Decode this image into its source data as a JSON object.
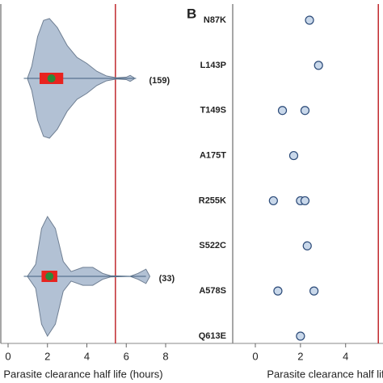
{
  "chart_data": [
    {
      "type": "violin",
      "x_label": "Parasite clearance half life (hours)",
      "xlim": [
        0,
        8
      ],
      "xticks": [
        0,
        2,
        4,
        6,
        8
      ],
      "refline": 5.45,
      "refline_color": "#c0282d",
      "fill": "#b2c1d4",
      "box_color": "#e8231f",
      "median_color": "#2a8a3a",
      "series": [
        {
          "annotation": "(159)",
          "min": 0.8,
          "q1": 1.6,
          "median": 2.2,
          "q3": 2.8,
          "max": 6.5,
          "density_x": [
            1.0,
            1.2,
            1.5,
            1.8,
            2.1,
            2.5,
            3.0,
            3.5,
            4.0,
            4.5,
            5.0,
            5.5,
            6.0,
            6.2,
            6.4
          ],
          "density": [
            0.02,
            0.2,
            0.7,
            0.97,
            1.0,
            0.85,
            0.55,
            0.35,
            0.25,
            0.12,
            0.04,
            0.01,
            0.02,
            0.05,
            0.01
          ]
        },
        {
          "annotation": "(33)",
          "min": 0.8,
          "q1": 1.7,
          "median": 2.1,
          "q3": 2.5,
          "max": 7.0,
          "density_x": [
            1.0,
            1.4,
            1.7,
            2.0,
            2.4,
            2.8,
            3.2,
            3.8,
            4.3,
            4.8,
            5.2,
            6.2,
            6.6,
            7.0,
            7.2
          ],
          "density": [
            0.01,
            0.2,
            0.8,
            1.0,
            0.8,
            0.25,
            0.08,
            0.15,
            0.15,
            0.05,
            0.01,
            0.0,
            0.05,
            0.12,
            0.0
          ]
        }
      ]
    },
    {
      "type": "strip",
      "panel_label": "B",
      "x_label": "Parasite clearance half life (hours)",
      "xlim": [
        0,
        5.8
      ],
      "xticks": [
        0,
        2,
        4
      ],
      "refline": 5.45,
      "refline_color": "#c0282d",
      "marker_fill": "#c9d8ea",
      "marker_edge": "#2b4a78",
      "categories": [
        "N87K",
        "L143P",
        "T149S",
        "A175T",
        "R255K",
        "S522C",
        "A578S",
        "Q613E"
      ],
      "values": [
        [
          2.4
        ],
        [
          2.8
        ],
        [
          1.2,
          2.2
        ],
        [
          1.7
        ],
        [
          0.8,
          2.0,
          2.2
        ],
        [
          2.3
        ],
        [
          1.0,
          2.6
        ],
        [
          2.0
        ]
      ]
    }
  ]
}
